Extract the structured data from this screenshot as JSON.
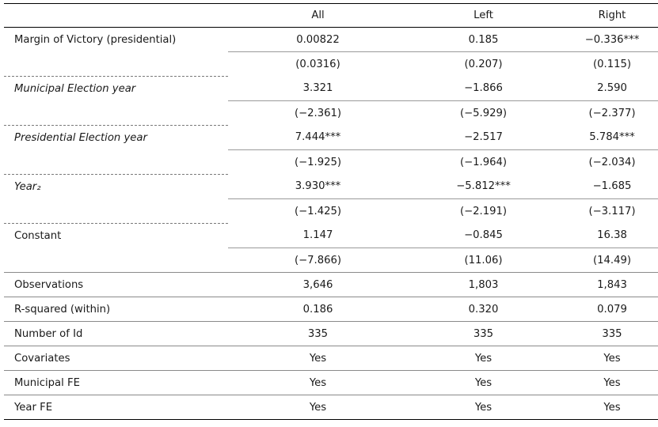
{
  "table": {
    "columns": [
      "",
      "All",
      "Left",
      "Right"
    ],
    "rows": [
      {
        "label": "Margin of Victory (presidential)",
        "italic": false,
        "est": [
          "0.00822",
          "0.185",
          "−0.336***"
        ],
        "se": [
          "(0.0316)",
          "(0.207)",
          "(0.115)"
        ]
      },
      {
        "label": "Municipal Election year",
        "italic": true,
        "est": [
          "3.321",
          "−1.866",
          "2.590"
        ],
        "se": [
          "(−2.361)",
          "(−5.929)",
          "(−2.377)"
        ]
      },
      {
        "label": "Presidential Election year",
        "italic": true,
        "est": [
          "7.444***",
          "−2.517",
          "5.784***"
        ],
        "se": [
          "(−1.925)",
          "(−1.964)",
          "(−2.034)"
        ]
      },
      {
        "label": "Year₂",
        "italic": true,
        "est": [
          "3.930***",
          "−5.812***",
          "−1.685"
        ],
        "se": [
          "(−1.425)",
          "(−2.191)",
          "(−3.117)"
        ]
      },
      {
        "label": "Constant",
        "italic": false,
        "est": [
          "1.147",
          "−0.845",
          "16.38"
        ],
        "se": [
          "(−7.866)",
          "(11.06)",
          "(14.49)"
        ]
      }
    ],
    "stats": [
      {
        "label": "Observations",
        "values": [
          "3,646",
          "1,803",
          "1,843"
        ]
      },
      {
        "label": "R-squared (within)",
        "values": [
          "0.186",
          "0.320",
          "0.079"
        ]
      },
      {
        "label": "Number of Id",
        "values": [
          "335",
          "335",
          "335"
        ]
      },
      {
        "label": "Covariates",
        "values": [
          "Yes",
          "Yes",
          "Yes"
        ]
      },
      {
        "label": "Municipal FE",
        "values": [
          "Yes",
          "Yes",
          "Yes"
        ]
      },
      {
        "label": "Year FE",
        "values": [
          "Yes",
          "Yes",
          "Yes"
        ]
      }
    ]
  }
}
